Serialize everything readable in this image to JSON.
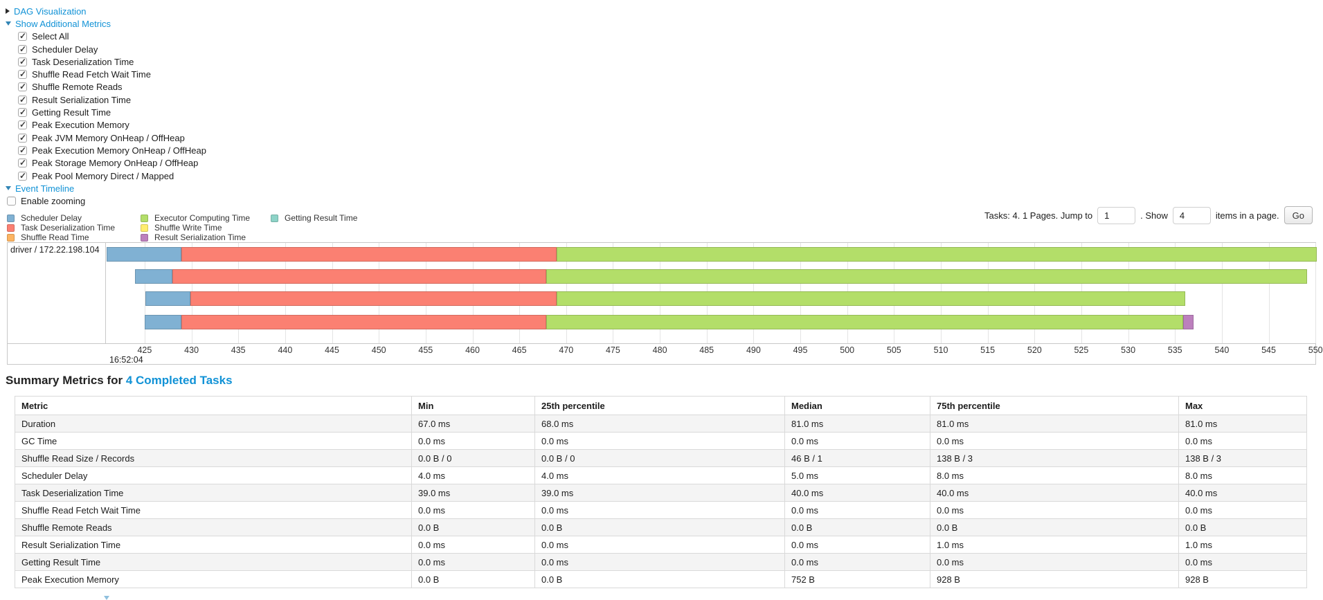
{
  "colors": {
    "link": "#1192d6",
    "scheduler_delay": {
      "fill": "#80B1D3",
      "border": "#6B94B0"
    },
    "task_deserialization": {
      "fill": "#FB8072",
      "border": "#D26B5F"
    },
    "shuffle_read": {
      "fill": "#FDB462",
      "border": "#D39651"
    },
    "executor_computing": {
      "fill": "#B3DE69",
      "border": "#95B957"
    },
    "shuffle_write": {
      "fill": "#FFED6F",
      "border": "#D5C65C"
    },
    "result_serialization": {
      "fill": "#BC80BD",
      "border": "#9D6B9E"
    },
    "getting_result": {
      "fill": "#8DD3C7",
      "border": "#75B0A6"
    }
  },
  "controls": {
    "dag": {
      "label": "DAG Visualization",
      "state": "collapsed"
    },
    "metrics_toggle": {
      "label": "Show Additional Metrics",
      "state": "expanded"
    },
    "checkboxes": [
      {
        "label": "Select All",
        "checked": true
      },
      {
        "label": "Scheduler Delay",
        "checked": true
      },
      {
        "label": "Task Deserialization Time",
        "checked": true
      },
      {
        "label": "Shuffle Read Fetch Wait Time",
        "checked": true
      },
      {
        "label": "Shuffle Remote Reads",
        "checked": true
      },
      {
        "label": "Result Serialization Time",
        "checked": true
      },
      {
        "label": "Getting Result Time",
        "checked": true
      },
      {
        "label": "Peak Execution Memory",
        "checked": true
      },
      {
        "label": "Peak JVM Memory OnHeap / OffHeap",
        "checked": true
      },
      {
        "label": "Peak Execution Memory OnHeap / OffHeap",
        "checked": true
      },
      {
        "label": "Peak Storage Memory OnHeap / OffHeap",
        "checked": true
      },
      {
        "label": "Peak Pool Memory Direct / Mapped",
        "checked": true
      }
    ],
    "event_timeline": {
      "label": "Event Timeline",
      "state": "expanded"
    },
    "enable_zooming": {
      "label": "Enable zooming",
      "checked": false
    }
  },
  "legend": {
    "columns": [
      [
        {
          "label": "Scheduler Delay",
          "color_key": "scheduler_delay"
        },
        {
          "label": "Task Deserialization Time",
          "color_key": "task_deserialization"
        },
        {
          "label": "Shuffle Read Time",
          "color_key": "shuffle_read"
        }
      ],
      [
        {
          "label": "Executor Computing Time",
          "color_key": "executor_computing"
        },
        {
          "label": "Shuffle Write Time",
          "color_key": "shuffle_write"
        },
        {
          "label": "Result Serialization Time",
          "color_key": "result_serialization"
        }
      ],
      [
        {
          "label": "Getting Result Time",
          "color_key": "getting_result"
        }
      ]
    ]
  },
  "pagination": {
    "text_before": "Tasks: 4. 1 Pages. Jump to",
    "jump_value": "1",
    "text_mid": ". Show",
    "show_value": "4",
    "text_after": "items in a page.",
    "go_label": "Go"
  },
  "chart_data": {
    "type": "timeline-gantt",
    "group_label": "driver / 172.22.198.104",
    "time_label": "16:52:04",
    "axis": {
      "t_start": 420.94,
      "t_end": 550.1,
      "tick_step": 5,
      "ticks": [
        425,
        430,
        435,
        440,
        445,
        450,
        455,
        460,
        465,
        470,
        475,
        480,
        485,
        490,
        495,
        500,
        505,
        510,
        515,
        520,
        525,
        530,
        535,
        540,
        545,
        550
      ]
    },
    "tasks": [
      {
        "row": 0,
        "segments": [
          {
            "type": "scheduler_delay",
            "start": 420.94,
            "end": 428.9
          },
          {
            "type": "task_deserialization",
            "start": 428.9,
            "end": 469.0
          },
          {
            "type": "executor_computing",
            "start": 469.0,
            "end": 550.1
          }
        ]
      },
      {
        "row": 1,
        "segments": [
          {
            "type": "scheduler_delay",
            "start": 424.0,
            "end": 428.0
          },
          {
            "type": "task_deserialization",
            "start": 428.0,
            "end": 467.9
          },
          {
            "type": "executor_computing",
            "start": 467.9,
            "end": 549.1
          }
        ]
      },
      {
        "row": 2,
        "segments": [
          {
            "type": "scheduler_delay",
            "start": 425.1,
            "end": 429.9
          },
          {
            "type": "task_deserialization",
            "start": 429.9,
            "end": 469.0
          },
          {
            "type": "executor_computing",
            "start": 469.0,
            "end": 536.1
          }
        ]
      },
      {
        "row": 3,
        "segments": [
          {
            "type": "scheduler_delay",
            "start": 425.0,
            "end": 428.9
          },
          {
            "type": "task_deserialization",
            "start": 428.9,
            "end": 467.9
          },
          {
            "type": "executor_computing",
            "start": 467.9,
            "end": 535.9
          },
          {
            "type": "result_serialization",
            "start": 535.9,
            "end": 537.0
          }
        ]
      }
    ]
  },
  "summary": {
    "heading_prefix": "Summary Metrics for",
    "heading_link": "4 Completed Tasks",
    "columns": [
      "Metric",
      "Min",
      "25th percentile",
      "Median",
      "75th percentile",
      "Max"
    ],
    "rows": [
      {
        "metric": "Duration",
        "values": [
          "67.0 ms",
          "68.0 ms",
          "81.0 ms",
          "81.0 ms",
          "81.0 ms"
        ]
      },
      {
        "metric": "GC Time",
        "values": [
          "0.0 ms",
          "0.0 ms",
          "0.0 ms",
          "0.0 ms",
          "0.0 ms"
        ]
      },
      {
        "metric": "Shuffle Read Size / Records",
        "values": [
          "0.0 B / 0",
          "0.0 B / 0",
          "46 B / 1",
          "138 B / 3",
          "138 B / 3"
        ]
      },
      {
        "metric": "Scheduler Delay",
        "values": [
          "4.0 ms",
          "4.0 ms",
          "5.0 ms",
          "8.0 ms",
          "8.0 ms"
        ]
      },
      {
        "metric": "Task Deserialization Time",
        "values": [
          "39.0 ms",
          "39.0 ms",
          "40.0 ms",
          "40.0 ms",
          "40.0 ms"
        ]
      },
      {
        "metric": "Shuffle Read Fetch Wait Time",
        "values": [
          "0.0 ms",
          "0.0 ms",
          "0.0 ms",
          "0.0 ms",
          "0.0 ms"
        ]
      },
      {
        "metric": "Shuffle Remote Reads",
        "values": [
          "0.0 B",
          "0.0 B",
          "0.0 B",
          "0.0 B",
          "0.0 B"
        ]
      },
      {
        "metric": "Result Serialization Time",
        "values": [
          "0.0 ms",
          "0.0 ms",
          "0.0 ms",
          "1.0 ms",
          "1.0 ms"
        ]
      },
      {
        "metric": "Getting Result Time",
        "values": [
          "0.0 ms",
          "0.0 ms",
          "0.0 ms",
          "0.0 ms",
          "0.0 ms"
        ]
      },
      {
        "metric": "Peak Execution Memory",
        "values": [
          "0.0 B",
          "0.0 B",
          "752 B",
          "928 B",
          "928 B"
        ]
      }
    ]
  }
}
